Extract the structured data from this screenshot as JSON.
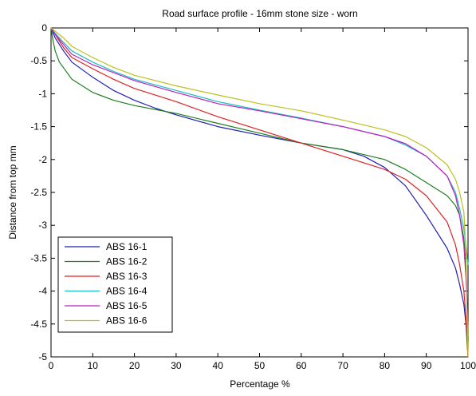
{
  "chart_data": {
    "type": "line",
    "title": "Road surface profile - 16mm stone size - worn",
    "xlabel": "Percentage %",
    "ylabel": "Distance from top mm",
    "xlim": [
      0,
      100
    ],
    "ylim": [
      -5,
      0
    ],
    "xticks": [
      0,
      10,
      20,
      30,
      40,
      50,
      60,
      70,
      80,
      90,
      100
    ],
    "xtick_labels": [
      "0",
      "10",
      "20",
      "30",
      "40",
      "50",
      "60",
      "70",
      "80",
      "90",
      "100"
    ],
    "yticks": [
      0,
      -0.5,
      -1,
      -1.5,
      -2,
      -2.5,
      -3,
      -3.5,
      -4,
      -4.5,
      -5
    ],
    "ytick_labels": [
      "0",
      "-0.5",
      "-1",
      "-1.5",
      "-2",
      "-2.5",
      "-3",
      "-3.5",
      "-4",
      "-4.5",
      "-5"
    ],
    "grid": false,
    "legend_position": "bottom-left",
    "series": [
      {
        "name": "ABS 16-1",
        "color": "#1f1fb4",
        "points": [
          [
            0,
            0
          ],
          [
            1,
            -0.15
          ],
          [
            3,
            -0.35
          ],
          [
            5,
            -0.52
          ],
          [
            10,
            -0.75
          ],
          [
            15,
            -0.95
          ],
          [
            20,
            -1.1
          ],
          [
            25,
            -1.22
          ],
          [
            30,
            -1.32
          ],
          [
            40,
            -1.5
          ],
          [
            50,
            -1.63
          ],
          [
            60,
            -1.75
          ],
          [
            70,
            -1.85
          ],
          [
            75,
            -1.95
          ],
          [
            80,
            -2.12
          ],
          [
            85,
            -2.4
          ],
          [
            90,
            -2.85
          ],
          [
            95,
            -3.35
          ],
          [
            97,
            -3.65
          ],
          [
            98,
            -3.9
          ],
          [
            99,
            -4.2
          ],
          [
            99.5,
            -4.5
          ],
          [
            100,
            -5
          ]
        ]
      },
      {
        "name": "ABS 16-2",
        "color": "#1f7f1f",
        "points": [
          [
            0,
            0
          ],
          [
            0.5,
            -0.2
          ],
          [
            1,
            -0.35
          ],
          [
            2,
            -0.52
          ],
          [
            5,
            -0.78
          ],
          [
            10,
            -0.98
          ],
          [
            15,
            -1.1
          ],
          [
            20,
            -1.18
          ],
          [
            30,
            -1.3
          ],
          [
            40,
            -1.45
          ],
          [
            50,
            -1.6
          ],
          [
            60,
            -1.75
          ],
          [
            70,
            -1.85
          ],
          [
            80,
            -2.0
          ],
          [
            85,
            -2.15
          ],
          [
            90,
            -2.35
          ],
          [
            95,
            -2.55
          ],
          [
            97,
            -2.7
          ],
          [
            98,
            -2.85
          ],
          [
            99,
            -3.2
          ],
          [
            99.5,
            -3.6
          ],
          [
            100,
            -4.7
          ]
        ]
      },
      {
        "name": "ABS 16-3",
        "color": "#e02222",
        "points": [
          [
            0,
            0
          ],
          [
            1,
            -0.1
          ],
          [
            3,
            -0.3
          ],
          [
            5,
            -0.45
          ],
          [
            10,
            -0.62
          ],
          [
            15,
            -0.78
          ],
          [
            20,
            -0.92
          ],
          [
            30,
            -1.12
          ],
          [
            40,
            -1.35
          ],
          [
            50,
            -1.55
          ],
          [
            60,
            -1.75
          ],
          [
            70,
            -1.95
          ],
          [
            80,
            -2.15
          ],
          [
            85,
            -2.3
          ],
          [
            90,
            -2.55
          ],
          [
            95,
            -2.95
          ],
          [
            97,
            -3.3
          ],
          [
            98,
            -3.6
          ],
          [
            99,
            -4.0
          ],
          [
            99.5,
            -4.4
          ],
          [
            100,
            -5
          ]
        ]
      },
      {
        "name": "ABS 16-4",
        "color": "#17bfbf",
        "points": [
          [
            0,
            0
          ],
          [
            1,
            -0.08
          ],
          [
            3,
            -0.22
          ],
          [
            5,
            -0.35
          ],
          [
            10,
            -0.52
          ],
          [
            15,
            -0.66
          ],
          [
            20,
            -0.78
          ],
          [
            30,
            -0.95
          ],
          [
            40,
            -1.12
          ],
          [
            50,
            -1.25
          ],
          [
            60,
            -1.37
          ],
          [
            70,
            -1.5
          ],
          [
            80,
            -1.65
          ],
          [
            85,
            -1.78
          ],
          [
            90,
            -1.95
          ],
          [
            95,
            -2.25
          ],
          [
            97,
            -2.5
          ],
          [
            98,
            -2.75
          ],
          [
            99,
            -3.05
          ],
          [
            99.5,
            -3.3
          ],
          [
            100,
            -3.6
          ]
        ]
      },
      {
        "name": "ABS 16-5",
        "color": "#bf1fbf",
        "points": [
          [
            0,
            0
          ],
          [
            1,
            -0.1
          ],
          [
            3,
            -0.25
          ],
          [
            5,
            -0.4
          ],
          [
            10,
            -0.56
          ],
          [
            15,
            -0.68
          ],
          [
            20,
            -0.8
          ],
          [
            30,
            -0.98
          ],
          [
            40,
            -1.15
          ],
          [
            50,
            -1.26
          ],
          [
            60,
            -1.38
          ],
          [
            70,
            -1.5
          ],
          [
            80,
            -1.65
          ],
          [
            85,
            -1.76
          ],
          [
            90,
            -1.95
          ],
          [
            95,
            -2.25
          ],
          [
            97,
            -2.55
          ],
          [
            98,
            -2.85
          ],
          [
            99,
            -3.3
          ],
          [
            99.5,
            -3.8
          ],
          [
            100,
            -4.6
          ]
        ]
      },
      {
        "name": "ABS 16-6",
        "color": "#bfbf1f",
        "points": [
          [
            0,
            0
          ],
          [
            1,
            -0.05
          ],
          [
            3,
            -0.15
          ],
          [
            5,
            -0.28
          ],
          [
            10,
            -0.45
          ],
          [
            15,
            -0.6
          ],
          [
            20,
            -0.72
          ],
          [
            30,
            -0.88
          ],
          [
            40,
            -1.02
          ],
          [
            50,
            -1.15
          ],
          [
            60,
            -1.26
          ],
          [
            70,
            -1.4
          ],
          [
            80,
            -1.55
          ],
          [
            85,
            -1.65
          ],
          [
            90,
            -1.82
          ],
          [
            95,
            -2.08
          ],
          [
            97,
            -2.3
          ],
          [
            98,
            -2.5
          ],
          [
            99,
            -2.8
          ],
          [
            99.5,
            -3.4
          ],
          [
            100,
            -5
          ]
        ]
      }
    ]
  }
}
